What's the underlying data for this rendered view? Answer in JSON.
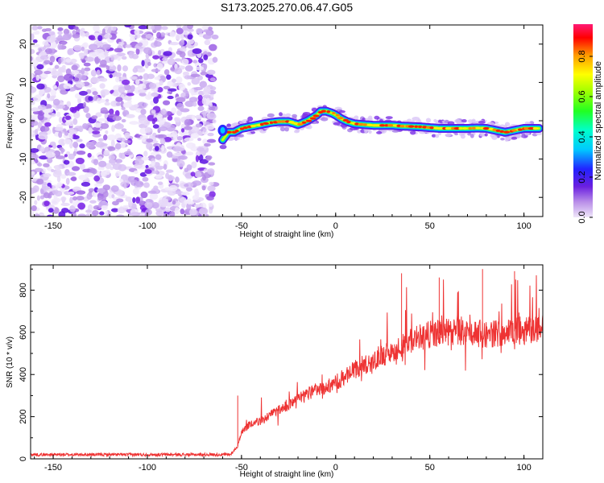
{
  "title": "S173.2025.270.06.47.G05",
  "chart_data": [
    {
      "type": "heatmap",
      "xlabel": "Height of straight line (km)",
      "ylabel": "Frequency (Hz)",
      "xlim": [
        -162,
        110
      ],
      "ylim": [
        -25,
        25
      ],
      "xticks": [
        -150,
        -100,
        -50,
        0,
        50,
        100
      ],
      "yticks": [
        -20,
        -10,
        0,
        10,
        20
      ],
      "noise_region_x": [
        -162,
        -64
      ],
      "ridge": {
        "x": [
          -60,
          -57,
          -54,
          -50,
          -45,
          -40,
          -35,
          -30,
          -25,
          -20,
          -15,
          -10,
          -8,
          -5,
          -2,
          0,
          3,
          6,
          10,
          15,
          20,
          25,
          30,
          35,
          40,
          45,
          50,
          55,
          60,
          65,
          70,
          75,
          80,
          85,
          90,
          95,
          100,
          103,
          108
        ],
        "freq": [
          -5,
          -3,
          -3,
          -2,
          -1.5,
          -1,
          -0.5,
          -0.2,
          -0.2,
          -1,
          0,
          1.5,
          2.5,
          2.5,
          2,
          1.5,
          0.5,
          -0.2,
          -0.8,
          -1,
          -1.2,
          -1.2,
          -1.2,
          -1.4,
          -1.5,
          -1.6,
          -1.8,
          -2,
          -2,
          -2,
          -2,
          -1.9,
          -2,
          -2.5,
          -3,
          -2.5,
          -2,
          -2,
          -2
        ]
      },
      "colorbar": {
        "label": "Normalized spectral amplitude",
        "ticks": [
          0.0,
          0.2,
          0.4,
          0.6,
          0.8
        ],
        "range": [
          0,
          0.96
        ]
      }
    },
    {
      "type": "line",
      "xlabel": "Height of straight line (km)",
      "ylabel": "SNR (10 * v/v)",
      "xlim": [
        -162,
        110
      ],
      "ylim": [
        0,
        920
      ],
      "xticks": [
        -150,
        -100,
        -50,
        0,
        50,
        100
      ],
      "yticks": [
        0,
        200,
        400,
        600,
        800
      ],
      "color": "#ee3333",
      "baseline_trend": {
        "x": [
          -162,
          -56,
          -52,
          -50,
          -45,
          -40,
          -30,
          -20,
          -10,
          0,
          10,
          20,
          30,
          40,
          50,
          60,
          70,
          80,
          90,
          100,
          110
        ],
        "snr": [
          20,
          20,
          60,
          130,
          170,
          180,
          230,
          280,
          330,
          360,
          420,
          470,
          510,
          560,
          590,
          600,
          600,
          590,
          600,
          610,
          620
        ]
      },
      "notable_peaks": [
        {
          "x": -52,
          "snr": 300
        },
        {
          "x": 35,
          "snr": 880
        },
        {
          "x": 55,
          "snr": 860
        },
        {
          "x": 78,
          "snr": 900
        },
        {
          "x": 95,
          "snr": 890
        }
      ]
    }
  ]
}
